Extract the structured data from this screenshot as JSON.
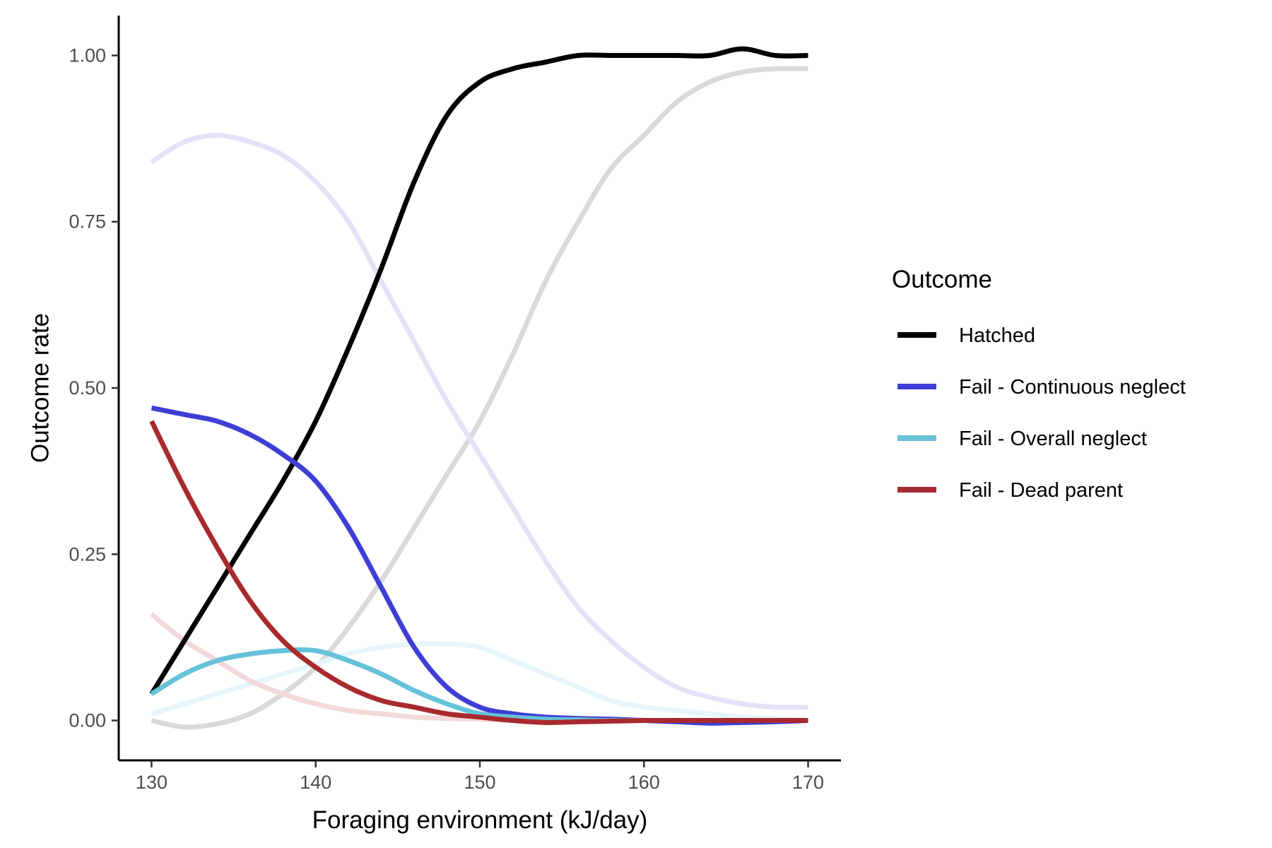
{
  "chart_data": {
    "type": "line",
    "xlabel": "Foraging environment (kJ/day)",
    "ylabel": "Outcome rate",
    "xlim": [
      128,
      172
    ],
    "ylim": [
      -0.06,
      1.06
    ],
    "x_ticks": [
      "130",
      "140",
      "150",
      "160",
      "170"
    ],
    "y_ticks": [
      "0.00",
      "0.25",
      "0.50",
      "0.75",
      "1.00"
    ],
    "grid": false,
    "legend": {
      "title": "Outcome",
      "placement": "right",
      "entries": [
        {
          "label": "Hatched",
          "color": "#000000"
        },
        {
          "label": "Fail - Continuous neglect",
          "color": "#3e3ed6"
        },
        {
          "label": "Fail - Overall neglect",
          "color": "#66c2d9"
        },
        {
          "label": "Fail - Dead parent",
          "color": "#a82a2e"
        }
      ]
    },
    "x": [
      130,
      132,
      134,
      136,
      138,
      140,
      142,
      144,
      146,
      148,
      150,
      152,
      154,
      156,
      158,
      160,
      162,
      164,
      166,
      168,
      170
    ],
    "series": [
      {
        "name": "Hatched",
        "color": "#000000",
        "values": [
          0.04,
          0.12,
          0.2,
          0.28,
          0.36,
          0.45,
          0.56,
          0.68,
          0.81,
          0.91,
          0.96,
          0.98,
          0.99,
          1.0,
          1.0,
          1.0,
          1.0,
          1.0,
          1.01,
          1.0,
          1.0
        ]
      },
      {
        "name": "Fail - Continuous neglect",
        "color": "#3e3ed6",
        "values": [
          0.47,
          0.46,
          0.45,
          0.43,
          0.4,
          0.36,
          0.29,
          0.2,
          0.11,
          0.05,
          0.02,
          0.01,
          0.005,
          0.003,
          0.002,
          0.0,
          -0.002,
          -0.004,
          -0.003,
          -0.002,
          0.0
        ]
      },
      {
        "name": "Fail - Overall neglect",
        "color": "#66c2d9",
        "values": [
          0.04,
          0.07,
          0.09,
          0.1,
          0.105,
          0.105,
          0.09,
          0.07,
          0.045,
          0.025,
          0.01,
          0.005,
          0.002,
          0.001,
          0.0,
          0.0,
          0.0,
          0.0,
          0.0,
          0.0,
          0.0
        ]
      },
      {
        "name": "Fail - Dead parent",
        "color": "#a82a2e",
        "values": [
          0.45,
          0.35,
          0.26,
          0.18,
          0.12,
          0.08,
          0.05,
          0.03,
          0.02,
          0.01,
          0.005,
          0.0,
          -0.003,
          -0.002,
          -0.001,
          0.0,
          0.0,
          0.0,
          0.0,
          0.0,
          0.0
        ]
      },
      {
        "color": "#d9d9d9",
        "values": [
          0.0,
          -0.01,
          -0.005,
          0.01,
          0.04,
          0.08,
          0.14,
          0.21,
          0.29,
          0.37,
          0.45,
          0.55,
          0.66,
          0.75,
          0.83,
          0.88,
          0.93,
          0.96,
          0.975,
          0.98,
          0.98
        ]
      },
      {
        "color": "#e3e3f8",
        "values": [
          0.84,
          0.87,
          0.88,
          0.87,
          0.85,
          0.81,
          0.75,
          0.66,
          0.57,
          0.48,
          0.4,
          0.32,
          0.24,
          0.17,
          0.12,
          0.08,
          0.05,
          0.035,
          0.025,
          0.02,
          0.02
        ]
      },
      {
        "color": "#e6f5f9",
        "values": [
          0.01,
          0.025,
          0.04,
          0.055,
          0.07,
          0.085,
          0.1,
          0.11,
          0.115,
          0.115,
          0.11,
          0.09,
          0.07,
          0.05,
          0.03,
          0.02,
          0.015,
          0.01,
          0.005,
          0.003,
          0.0
        ]
      },
      {
        "color": "#f2d9da",
        "values": [
          0.16,
          0.12,
          0.09,
          0.06,
          0.04,
          0.025,
          0.015,
          0.01,
          0.005,
          0.003,
          0.002,
          0.0,
          0.0,
          0.0,
          0.0,
          0.0,
          0.0,
          0.0,
          0.0,
          0.0,
          0.0
        ]
      }
    ]
  }
}
